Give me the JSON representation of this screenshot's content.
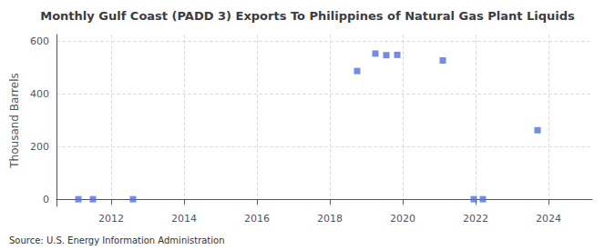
{
  "chart_data": {
    "type": "scatter",
    "title": "Monthly Gulf Coast (PADD 3) Exports To Philippines of Natural Gas Plant Liquids",
    "ylabel": "Thousand Barrels",
    "annotation": "Source: U.S. Energy Information Administration",
    "x": [
      2011.1,
      2011.5,
      2012.6,
      2018.75,
      2019.25,
      2019.55,
      2019.85,
      2021.1,
      2021.95,
      2022.2,
      2023.7
    ],
    "values": [
      2,
      2,
      2,
      487,
      553,
      547,
      548,
      527,
      2,
      2,
      263
    ],
    "marker": "square",
    "xlim": [
      2010.5,
      2025.2
    ],
    "xticks": [
      2012,
      2014,
      2016,
      2018,
      2020,
      2022,
      2024
    ],
    "ylim": [
      -25,
      625
    ],
    "yticks": [
      0,
      200,
      400,
      600
    ],
    "grid": true
  }
}
